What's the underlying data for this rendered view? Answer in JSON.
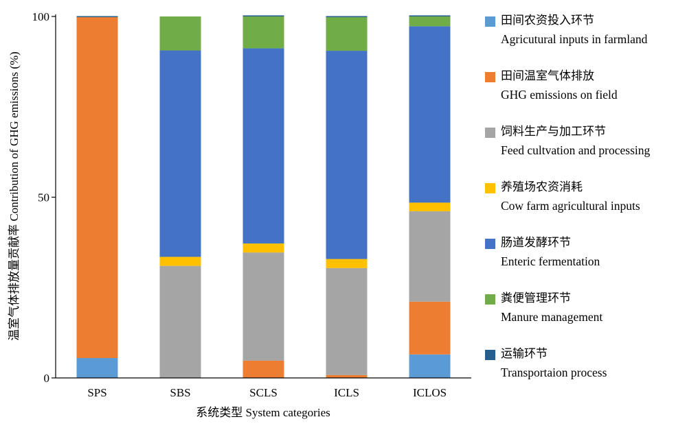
{
  "chart_data": {
    "type": "bar",
    "stacked": true,
    "categories": [
      "SPS",
      "SBS",
      "SCLS",
      "ICLS",
      "ICLOS"
    ],
    "xlabel": "系统类型 System categories",
    "ylabel": "温室气体排放量贡献率 Contribution of GHG emissions (%)",
    "ylim": [
      0,
      100
    ],
    "yticks": [
      "0",
      "50",
      "100"
    ],
    "grid": false,
    "legend_position": "right",
    "series": [
      {
        "name_zh": "田间农资投入环节",
        "name_en": "Agricutural inputs in farmland",
        "color": "#5b9bd5",
        "values": [
          5.5,
          0,
          0,
          0,
          6.5
        ]
      },
      {
        "name_zh": "田间温室气体排放",
        "name_en": "GHG emissions on field",
        "color": "#ed7d31",
        "values": [
          94.3,
          0,
          4.8,
          0.8,
          14.6
        ]
      },
      {
        "name_zh": "饲料生产与加工环节",
        "name_en": "Feed cultvation and processing",
        "color": "#a5a5a5",
        "values": [
          0,
          31.0,
          29.9,
          29.6,
          25.0
        ]
      },
      {
        "name_zh": "养殖场农资消耗",
        "name_en": "Cow farm agricultural inputs",
        "color": "#ffc000",
        "values": [
          0,
          2.5,
          2.5,
          2.5,
          2.4
        ]
      },
      {
        "name_zh": "肠道发酵环节",
        "name_en": "Enteric fermentation",
        "color": "#4472c4",
        "values": [
          0,
          57.1,
          54.0,
          57.6,
          48.8
        ]
      },
      {
        "name_zh": "粪便管理环节",
        "name_en": "Manure management",
        "color": "#70ad47",
        "values": [
          0,
          9.4,
          8.8,
          9.3,
          2.7
        ]
      },
      {
        "name_zh": "运输环节",
        "name_en": "Transportaion process",
        "color": "#255e91",
        "values": [
          0.3,
          0,
          0.3,
          0.3,
          0.3
        ]
      }
    ]
  }
}
